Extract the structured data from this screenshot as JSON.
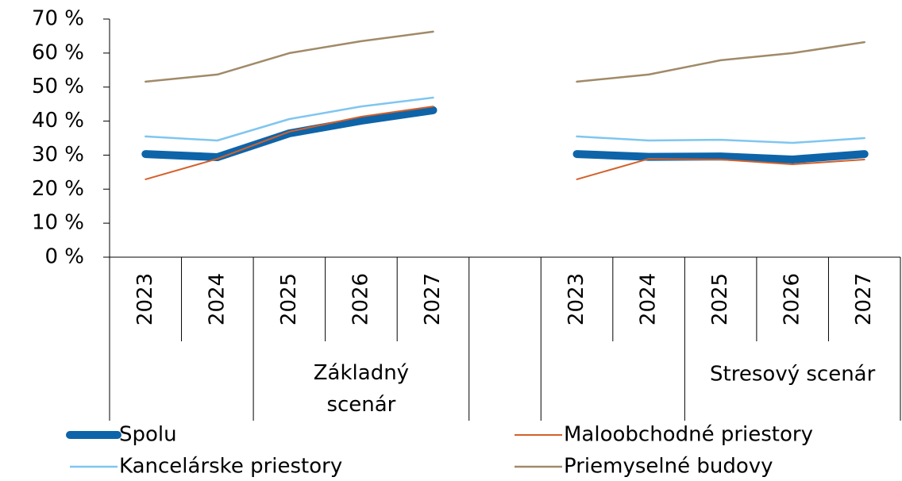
{
  "chart_data": {
    "type": "line",
    "categories": [
      "2023",
      "2024",
      "2025",
      "2026",
      "2027",
      null,
      "2023",
      "2024",
      "2025",
      "2026",
      "2027"
    ],
    "groups": [
      "Základný scenár",
      "Stresový scenár"
    ],
    "series": [
      {
        "name": "Spolu",
        "color": "#0e64a8",
        "values": [
          30.3,
          29.4,
          36.4,
          40.1,
          43.2,
          null,
          30.3,
          29.5,
          29.6,
          28.7,
          30.3
        ]
      },
      {
        "name": "Maloobchodné priestory",
        "color": "#d3602a",
        "values": [
          22.9,
          28.9,
          36.9,
          41.3,
          44.3,
          null,
          22.9,
          28.9,
          28.7,
          27.3,
          28.7
        ]
      },
      {
        "name": "Kancelárske priestory",
        "color": "#7fc6f0",
        "values": [
          35.5,
          34.3,
          40.6,
          44.3,
          46.9,
          null,
          35.5,
          34.3,
          34.5,
          33.6,
          35.0
        ]
      },
      {
        "name": "Priemyselné budovy",
        "color": "#a08a68",
        "values": [
          51.6,
          53.7,
          60.0,
          63.5,
          66.3,
          null,
          51.6,
          53.7,
          57.9,
          60.0,
          63.2
        ]
      }
    ],
    "ylim": [
      0,
      70
    ],
    "yticks": [
      {
        "value": 0,
        "label": "0 %"
      },
      {
        "value": 10,
        "label": "10 %"
      },
      {
        "value": 20,
        "label": "20 %"
      },
      {
        "value": 30,
        "label": "30 %"
      },
      {
        "value": 40,
        "label": "40 %"
      },
      {
        "value": 50,
        "label": "50 %"
      },
      {
        "value": 60,
        "label": "60 %"
      },
      {
        "value": 70,
        "label": "70 %"
      }
    ],
    "grid": false
  }
}
